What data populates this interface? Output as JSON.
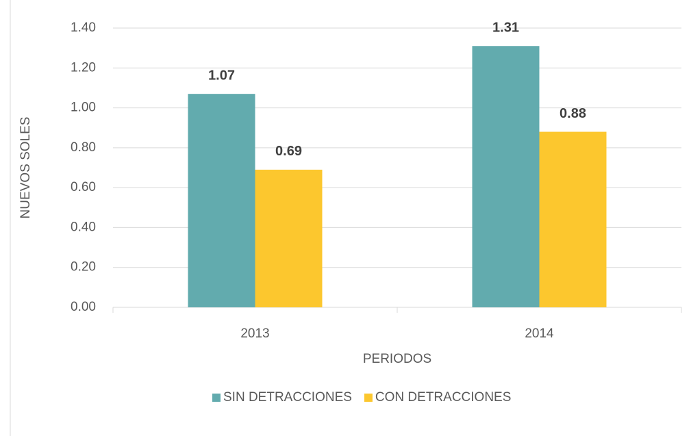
{
  "chart_data": {
    "type": "bar",
    "categories": [
      "2013",
      "2014"
    ],
    "series": [
      {
        "name": "SIN DETRACCIONES",
        "color": "#62abae",
        "values": [
          1.07,
          1.31
        ]
      },
      {
        "name": "CON DETRACCIONES",
        "color": "#fcc72e",
        "values": [
          0.69,
          0.88
        ]
      }
    ],
    "x_label": "PERIODOS",
    "y_label": "NUEVOS SOLES",
    "ylim": [
      0,
      1.4
    ],
    "yticks": [
      {
        "value": 0,
        "label": "0.00"
      },
      {
        "value": 0.2,
        "label": "0.20"
      },
      {
        "value": 0.4,
        "label": "0.40"
      },
      {
        "value": 0.6,
        "label": "0.60"
      },
      {
        "value": 0.8,
        "label": "0.80"
      },
      {
        "value": 1.0,
        "label": "1.00"
      },
      {
        "value": 1.2,
        "label": "1.20"
      },
      {
        "value": 1.4,
        "label": "1.40"
      }
    ],
    "grid": true,
    "legend": "bottom"
  }
}
